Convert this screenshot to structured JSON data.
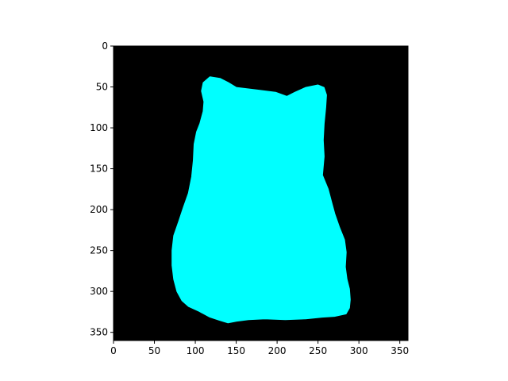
{
  "chart_data": {
    "type": "image",
    "title": "",
    "xlabel": "",
    "ylabel": "",
    "width": 360,
    "height": 360,
    "xlim": [
      0,
      360
    ],
    "ylim": [
      360,
      0
    ],
    "x_ticks": [
      0,
      50,
      100,
      150,
      200,
      250,
      300,
      350
    ],
    "y_ticks": [
      0,
      50,
      100,
      150,
      200,
      250,
      300,
      350
    ],
    "background_color": "#000000",
    "mask_color": "#00ffff",
    "mask_outline": [
      [
        118,
        38
      ],
      [
        130,
        40
      ],
      [
        140,
        45
      ],
      [
        150,
        51
      ],
      [
        175,
        54
      ],
      [
        198,
        57
      ],
      [
        212,
        62
      ],
      [
        222,
        57
      ],
      [
        235,
        51
      ],
      [
        250,
        48
      ],
      [
        257,
        51
      ],
      [
        260,
        60
      ],
      [
        259,
        75
      ],
      [
        257,
        95
      ],
      [
        256,
        115
      ],
      [
        257,
        135
      ],
      [
        255,
        158
      ],
      [
        262,
        175
      ],
      [
        266,
        190
      ],
      [
        270,
        205
      ],
      [
        276,
        222
      ],
      [
        282,
        237
      ],
      [
        284,
        252
      ],
      [
        283,
        270
      ],
      [
        285,
        285
      ],
      [
        288,
        297
      ],
      [
        289,
        310
      ],
      [
        288,
        320
      ],
      [
        284,
        327
      ],
      [
        270,
        330
      ],
      [
        255,
        331
      ],
      [
        235,
        333
      ],
      [
        210,
        334
      ],
      [
        185,
        333
      ],
      [
        165,
        334
      ],
      [
        150,
        336
      ],
      [
        140,
        338
      ],
      [
        130,
        335
      ],
      [
        118,
        331
      ],
      [
        105,
        324
      ],
      [
        92,
        318
      ],
      [
        84,
        311
      ],
      [
        78,
        300
      ],
      [
        74,
        285
      ],
      [
        72,
        268
      ],
      [
        72,
        250
      ],
      [
        74,
        232
      ],
      [
        80,
        215
      ],
      [
        86,
        197
      ],
      [
        92,
        180
      ],
      [
        96,
        160
      ],
      [
        98,
        140
      ],
      [
        99,
        120
      ],
      [
        102,
        105
      ],
      [
        106,
        95
      ],
      [
        110,
        80
      ],
      [
        111,
        68
      ],
      [
        108,
        55
      ],
      [
        110,
        45
      ]
    ]
  }
}
